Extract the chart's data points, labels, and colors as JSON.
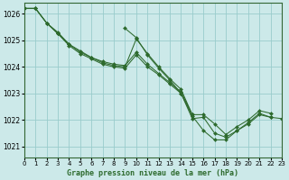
{
  "title": "Graphe pression niveau de la mer (hPa)",
  "bg_color": "#cce9e9",
  "grid_color": "#99cccc",
  "line_color": "#2d6a2d",
  "marker_color": "#2d6a2d",
  "xlim": [
    0,
    23
  ],
  "ylim": [
    1020.6,
    1026.4
  ],
  "yticks": [
    1021,
    1022,
    1023,
    1024,
    1025,
    1026
  ],
  "xticks": [
    0,
    1,
    2,
    3,
    4,
    5,
    6,
    7,
    8,
    9,
    10,
    11,
    12,
    13,
    14,
    15,
    16,
    17,
    18,
    19,
    20,
    21,
    22,
    23
  ],
  "series": [
    [
      1026.2,
      1026.2,
      1025.65,
      1025.25,
      1024.85,
      1024.55,
      1024.35,
      1024.15,
      1024.05,
      1024.0,
      1025.05,
      1024.5,
      1024.0,
      1023.55,
      1023.15,
      1022.2,
      null,
      null,
      null,
      null,
      null,
      null,
      null,
      null
    ],
    [
      1026.2,
      1026.2,
      1025.65,
      1025.3,
      1024.85,
      1024.6,
      1024.35,
      1024.2,
      1024.1,
      1024.05,
      1024.55,
      1024.1,
      1023.75,
      1023.4,
      1023.05,
      1022.2,
      1022.2,
      1021.85,
      1021.45,
      1021.75,
      1022.0,
      1022.35,
      1022.25,
      null
    ],
    [
      1026.2,
      1026.2,
      1025.65,
      1025.25,
      1024.8,
      1024.5,
      1024.3,
      1024.1,
      1024.0,
      1023.95,
      1024.45,
      1024.0,
      1023.7,
      1023.35,
      1023.0,
      1022.05,
      1022.1,
      1021.5,
      1021.35,
      1021.6,
      1021.85,
      1022.2,
      1022.1,
      null
    ],
    [
      null,
      null,
      null,
      null,
      null,
      null,
      null,
      null,
      null,
      1025.45,
      1025.1,
      1024.45,
      1023.95,
      1023.5,
      1023.0,
      1022.15,
      1021.6,
      1021.25,
      1021.25,
      1021.6,
      1021.9,
      1022.25,
      1022.1,
      1022.05
    ]
  ]
}
